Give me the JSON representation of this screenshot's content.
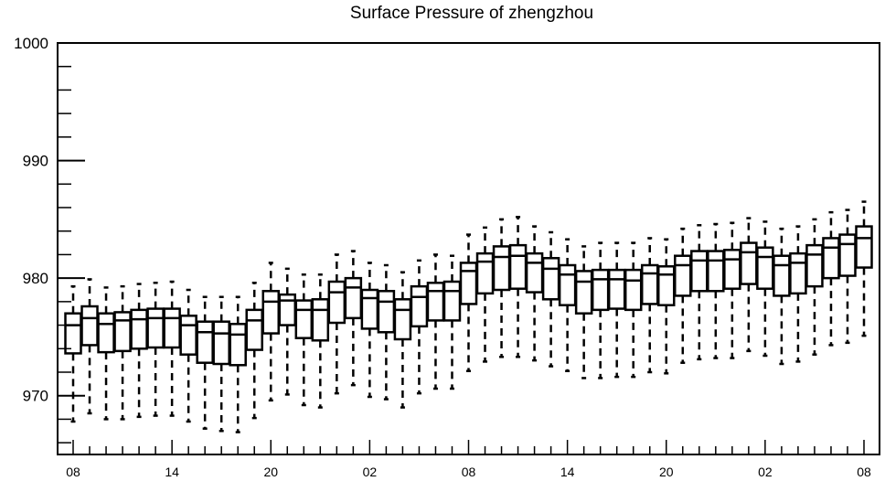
{
  "chart_data": {
    "type": "boxplot",
    "title": "Surface Pressure of zhengzhou",
    "xlabel": "",
    "ylabel": "",
    "ylim": [
      965,
      1000
    ],
    "y_ticks": [
      "970",
      "980",
      "990",
      "1000"
    ],
    "x_tick_labels": [
      "08",
      "14",
      "20",
      "02",
      "08",
      "14",
      "20",
      "02",
      "08"
    ],
    "grid": false,
    "series": [
      {
        "boxes": [
          {
            "x": 0,
            "min": 967.8,
            "q1": 973.6,
            "median": 976.0,
            "q3": 977.0,
            "max": 979.3
          },
          {
            "x": 1,
            "min": 968.5,
            "q1": 974.3,
            "median": 976.6,
            "q3": 977.6,
            "max": 979.9
          },
          {
            "x": 2,
            "min": 968.0,
            "q1": 973.7,
            "median": 976.1,
            "q3": 977.0,
            "max": 979.2
          },
          {
            "x": 3,
            "min": 968.0,
            "q1": 973.8,
            "median": 976.4,
            "q3": 977.1,
            "max": 979.3
          },
          {
            "x": 4,
            "min": 968.2,
            "q1": 974.0,
            "median": 976.5,
            "q3": 977.3,
            "max": 979.5
          },
          {
            "x": 5,
            "min": 968.3,
            "q1": 974.1,
            "median": 976.6,
            "q3": 977.4,
            "max": 979.6
          },
          {
            "x": 6,
            "min": 968.3,
            "q1": 974.1,
            "median": 976.6,
            "q3": 977.4,
            "max": 979.7
          },
          {
            "x": 7,
            "min": 967.8,
            "q1": 973.5,
            "median": 976.0,
            "q3": 976.8,
            "max": 979.0
          },
          {
            "x": 8,
            "min": 967.2,
            "q1": 972.8,
            "median": 975.4,
            "q3": 976.3,
            "max": 978.4
          },
          {
            "x": 9,
            "min": 967.0,
            "q1": 972.7,
            "median": 975.3,
            "q3": 976.3,
            "max": 978.4
          },
          {
            "x": 10,
            "min": 966.9,
            "q1": 972.6,
            "median": 975.2,
            "q3": 976.1,
            "max": 978.4
          },
          {
            "x": 11,
            "min": 968.1,
            "q1": 973.9,
            "median": 976.4,
            "q3": 977.3,
            "max": 979.6
          },
          {
            "x": 12,
            "min": 969.6,
            "q1": 975.3,
            "median": 978.0,
            "q3": 978.9,
            "max": 981.3
          },
          {
            "x": 13,
            "min": 970.1,
            "q1": 976.0,
            "median": 978.1,
            "q3": 978.6,
            "max": 980.8
          },
          {
            "x": 14,
            "min": 969.2,
            "q1": 974.9,
            "median": 977.3,
            "q3": 978.1,
            "max": 980.3
          },
          {
            "x": 15,
            "min": 969.0,
            "q1": 974.7,
            "median": 977.3,
            "q3": 978.2,
            "max": 980.3
          },
          {
            "x": 16,
            "min": 970.2,
            "q1": 976.2,
            "median": 978.8,
            "q3": 979.7,
            "max": 982.0
          },
          {
            "x": 17,
            "min": 970.9,
            "q1": 976.6,
            "median": 979.2,
            "q3": 980.0,
            "max": 982.3
          },
          {
            "x": 18,
            "min": 969.9,
            "q1": 975.7,
            "median": 978.3,
            "q3": 979.0,
            "max": 981.3
          },
          {
            "x": 19,
            "min": 969.7,
            "q1": 975.4,
            "median": 978.0,
            "q3": 978.9,
            "max": 981.1
          },
          {
            "x": 20,
            "min": 969.0,
            "q1": 974.8,
            "median": 977.3,
            "q3": 978.2,
            "max": 980.5
          },
          {
            "x": 21,
            "min": 970.2,
            "q1": 975.9,
            "median": 978.4,
            "q3": 979.3,
            "max": 981.5
          },
          {
            "x": 22,
            "min": 970.6,
            "q1": 976.4,
            "median": 978.9,
            "q3": 979.6,
            "max": 982.0
          },
          {
            "x": 23,
            "min": 970.6,
            "q1": 976.4,
            "median": 978.9,
            "q3": 979.7,
            "max": 981.9
          },
          {
            "x": 24,
            "min": 972.1,
            "q1": 977.8,
            "median": 980.6,
            "q3": 981.3,
            "max": 983.7
          },
          {
            "x": 25,
            "min": 972.9,
            "q1": 978.7,
            "median": 981.4,
            "q3": 982.1,
            "max": 984.3
          },
          {
            "x": 26,
            "min": 973.3,
            "q1": 979.0,
            "median": 981.8,
            "q3": 982.7,
            "max": 985.0
          },
          {
            "x": 27,
            "min": 973.3,
            "q1": 979.1,
            "median": 981.9,
            "q3": 982.8,
            "max": 985.2
          },
          {
            "x": 28,
            "min": 973.0,
            "q1": 978.8,
            "median": 981.3,
            "q3": 982.1,
            "max": 984.4
          },
          {
            "x": 29,
            "min": 972.5,
            "q1": 978.2,
            "median": 980.8,
            "q3": 981.7,
            "max": 983.9
          },
          {
            "x": 30,
            "min": 972.1,
            "q1": 977.7,
            "median": 980.3,
            "q3": 981.1,
            "max": 983.3
          },
          {
            "x": 31,
            "min": 971.5,
            "q1": 977.0,
            "median": 979.7,
            "q3": 980.6,
            "max": 982.7
          },
          {
            "x": 32,
            "min": 971.5,
            "q1": 977.3,
            "median": 979.9,
            "q3": 980.7,
            "max": 983.0
          },
          {
            "x": 33,
            "min": 971.6,
            "q1": 977.4,
            "median": 979.9,
            "q3": 980.7,
            "max": 983.0
          },
          {
            "x": 34,
            "min": 971.6,
            "q1": 977.3,
            "median": 979.8,
            "q3": 980.7,
            "max": 983.0
          },
          {
            "x": 35,
            "min": 972.0,
            "q1": 977.8,
            "median": 980.4,
            "q3": 981.1,
            "max": 983.4
          },
          {
            "x": 36,
            "min": 971.9,
            "q1": 977.7,
            "median": 980.3,
            "q3": 981.0,
            "max": 983.3
          },
          {
            "x": 37,
            "min": 972.8,
            "q1": 978.5,
            "median": 981.1,
            "q3": 981.9,
            "max": 984.2
          },
          {
            "x": 38,
            "min": 973.1,
            "q1": 978.9,
            "median": 981.5,
            "q3": 982.3,
            "max": 984.5
          },
          {
            "x": 39,
            "min": 973.2,
            "q1": 978.9,
            "median": 981.5,
            "q3": 982.3,
            "max": 984.6
          },
          {
            "x": 40,
            "min": 973.2,
            "q1": 979.1,
            "median": 981.6,
            "q3": 982.4,
            "max": 984.7
          },
          {
            "x": 41,
            "min": 973.8,
            "q1": 979.5,
            "median": 982.2,
            "q3": 983.0,
            "max": 985.1
          },
          {
            "x": 42,
            "min": 973.4,
            "q1": 979.1,
            "median": 981.8,
            "q3": 982.6,
            "max": 984.8
          },
          {
            "x": 43,
            "min": 972.7,
            "q1": 978.5,
            "median": 981.1,
            "q3": 981.9,
            "max": 984.2
          },
          {
            "x": 44,
            "min": 972.9,
            "q1": 978.7,
            "median": 981.3,
            "q3": 982.1,
            "max": 984.4
          },
          {
            "x": 45,
            "min": 973.5,
            "q1": 979.3,
            "median": 982.0,
            "q3": 982.8,
            "max": 985.0
          },
          {
            "x": 46,
            "min": 974.3,
            "q1": 980.0,
            "median": 982.6,
            "q3": 983.4,
            "max": 985.6
          },
          {
            "x": 47,
            "min": 974.5,
            "q1": 980.2,
            "median": 982.9,
            "q3": 983.7,
            "max": 985.8
          },
          {
            "x": 48,
            "min": 975.1,
            "q1": 980.9,
            "median": 983.4,
            "q3": 984.4,
            "max": 986.5
          }
        ]
      }
    ]
  }
}
